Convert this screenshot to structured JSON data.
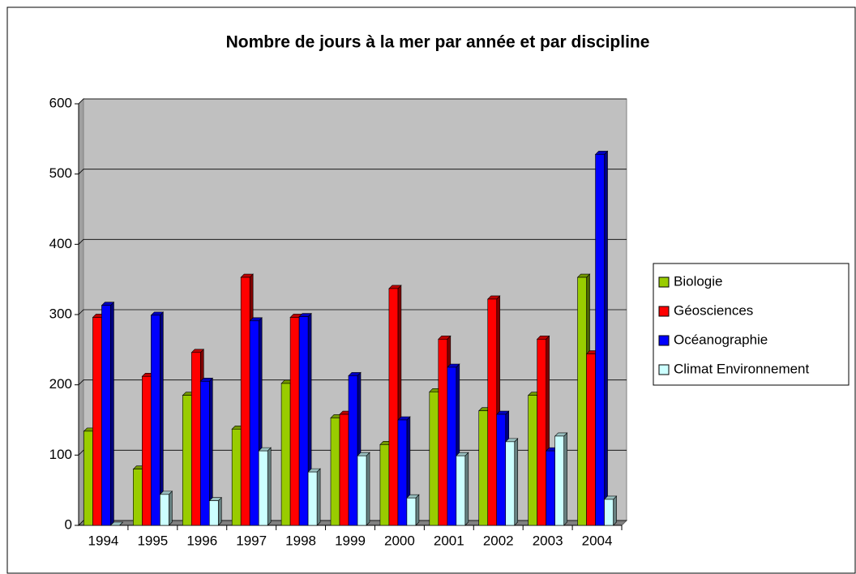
{
  "chart_data": {
    "type": "bar3d",
    "title": "Nombre de jours à la mer par année et par discipline",
    "categories": [
      "1994",
      "1995",
      "1996",
      "1997",
      "1998",
      "1999",
      "2000",
      "2001",
      "2002",
      "2003",
      "2004"
    ],
    "series": [
      {
        "name": "Biologie",
        "color": "#99cc00",
        "values": [
          134,
          80,
          185,
          137,
          202,
          153,
          115,
          190,
          163,
          185,
          353
        ]
      },
      {
        "name": "Géosciences",
        "color": "#ff0000",
        "values": [
          296,
          212,
          246,
          353,
          296,
          158,
          337,
          265,
          322,
          265,
          244
        ]
      },
      {
        "name": "Océanographie",
        "color": "#0000ff",
        "values": [
          313,
          299,
          205,
          291,
          297,
          213,
          150,
          225,
          158,
          106,
          528
        ]
      },
      {
        "name": "Climat Environnement",
        "color": "#ccffff",
        "values": [
          0,
          44,
          35,
          106,
          76,
          99,
          39,
          99,
          119,
          127,
          37
        ]
      }
    ],
    "ylim": [
      0,
      600
    ],
    "yticks": [
      0,
      100,
      200,
      300,
      400,
      500,
      600
    ],
    "grid": true,
    "legend": "right"
  }
}
